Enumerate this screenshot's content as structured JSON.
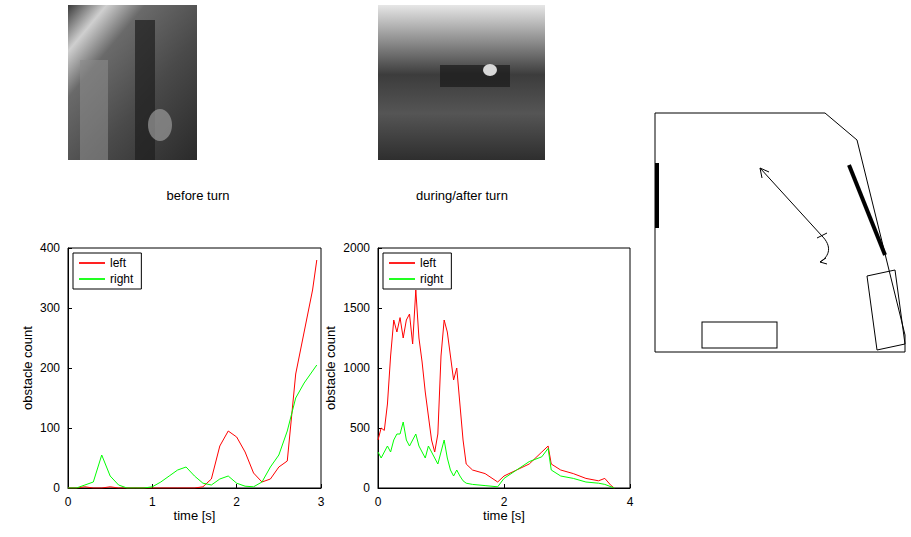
{
  "images": [
    {
      "caption": "before turn"
    },
    {
      "caption": "during/after turn"
    }
  ],
  "chart_data": [
    {
      "type": "line",
      "xlabel": "time [s]",
      "ylabel": "obstacle count",
      "x": [
        0,
        0.1,
        0.2,
        0.3,
        0.4,
        0.5,
        0.6,
        0.7,
        0.8,
        0.9,
        1.0,
        1.1,
        1.2,
        1.3,
        1.4,
        1.5,
        1.6,
        1.7,
        1.8,
        1.9,
        2.0,
        2.1,
        2.2,
        2.3,
        2.4,
        2.5,
        2.6,
        2.7,
        2.8,
        2.9,
        2.95
      ],
      "series": [
        {
          "name": "left",
          "color": "#ff0000",
          "values": [
            0,
            0,
            2,
            0,
            0,
            2,
            0,
            0,
            0,
            0,
            0,
            0,
            0,
            0,
            0,
            0,
            2,
            15,
            70,
            95,
            85,
            60,
            25,
            10,
            15,
            35,
            45,
            190,
            260,
            330,
            380
          ]
        },
        {
          "name": "right",
          "color": "#00ff00",
          "values": [
            0,
            0,
            5,
            10,
            55,
            20,
            5,
            0,
            0,
            0,
            2,
            10,
            20,
            30,
            35,
            20,
            8,
            5,
            15,
            20,
            8,
            3,
            2,
            10,
            35,
            55,
            95,
            150,
            175,
            195,
            205
          ]
        }
      ],
      "xlim": [
        0,
        3
      ],
      "xticks": [
        0,
        1,
        2,
        3
      ],
      "ylim": [
        0,
        400
      ],
      "yticks": [
        0,
        100,
        200,
        300,
        400
      ],
      "grid": false,
      "legend": "upper left"
    },
    {
      "type": "line",
      "xlabel": "time [s]",
      "ylabel": "obstacle count",
      "x": [
        0,
        0.05,
        0.1,
        0.15,
        0.2,
        0.25,
        0.3,
        0.35,
        0.4,
        0.45,
        0.5,
        0.55,
        0.6,
        0.65,
        0.7,
        0.75,
        0.8,
        0.85,
        0.9,
        0.95,
        1.0,
        1.05,
        1.1,
        1.15,
        1.2,
        1.25,
        1.3,
        1.35,
        1.4,
        1.5,
        1.7,
        1.9,
        2.0,
        2.2,
        2.4,
        2.6,
        2.7,
        2.75,
        2.9,
        3.1,
        3.3,
        3.5,
        3.6,
        3.7,
        3.75
      ],
      "series": [
        {
          "name": "left",
          "color": "#ff0000",
          "values": [
            400,
            500,
            480,
            700,
            1100,
            1400,
            1300,
            1420,
            1250,
            1400,
            1450,
            1200,
            1650,
            1250,
            1050,
            800,
            600,
            400,
            300,
            450,
            1100,
            1400,
            1300,
            1100,
            900,
            1000,
            700,
            400,
            200,
            150,
            120,
            50,
            100,
            150,
            200,
            300,
            350,
            200,
            150,
            120,
            80,
            60,
            80,
            20,
            0
          ]
        },
        {
          "name": "right",
          "color": "#00ff00",
          "values": [
            300,
            250,
            300,
            350,
            300,
            400,
            450,
            450,
            550,
            400,
            350,
            400,
            450,
            350,
            300,
            250,
            350,
            300,
            250,
            200,
            300,
            400,
            250,
            150,
            100,
            150,
            100,
            60,
            40,
            30,
            20,
            10,
            80,
            150,
            220,
            260,
            330,
            150,
            100,
            80,
            50,
            40,
            30,
            10,
            0
          ]
        }
      ],
      "xlim": [
        0,
        4
      ],
      "xticks": [
        0,
        2,
        4
      ],
      "ylim": [
        0,
        2000
      ],
      "yticks": [
        0,
        500,
        1000,
        1500,
        2000
      ],
      "grid": false,
      "legend": "upper left"
    }
  ]
}
